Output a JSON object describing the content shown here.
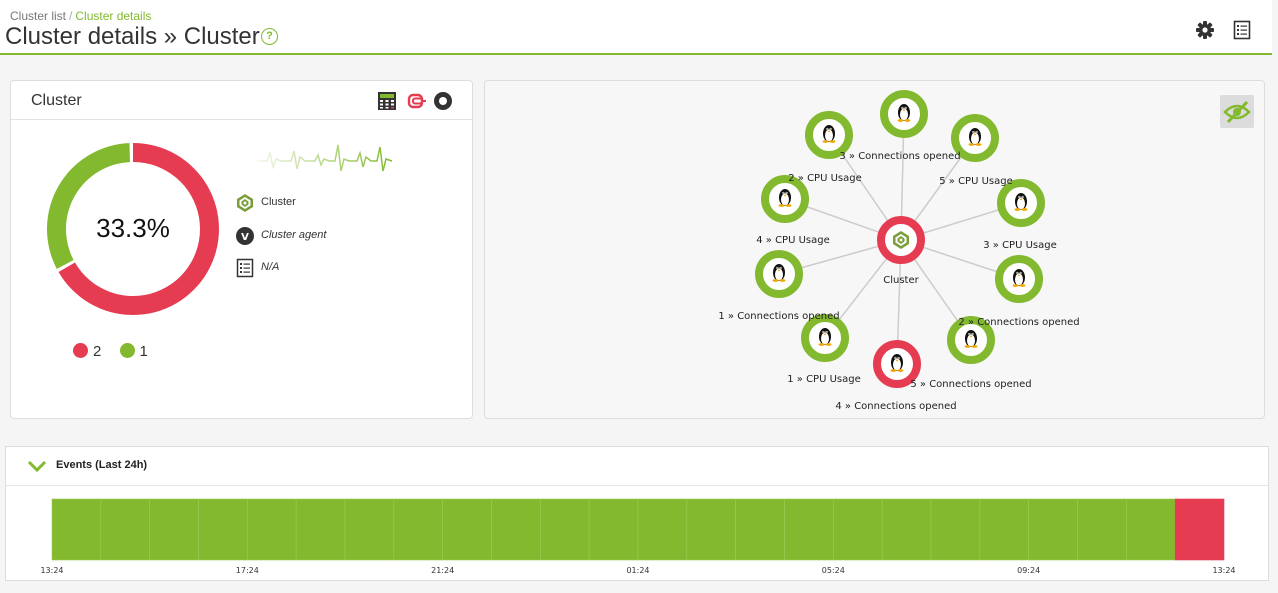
{
  "header": {
    "breadcrumb": [
      "Cluster list",
      "Cluster details"
    ],
    "breadcrumb_sep": "/",
    "title": "Cluster details » Cluster",
    "help_label": "?",
    "icons": [
      "gear-icon",
      "list-icon"
    ]
  },
  "cluster_panel": {
    "title": "Cluster",
    "icons": [
      "calculator-icon",
      "disconnect-icon",
      "status-circle-icon"
    ],
    "percent": "33.3%",
    "donut": {
      "critical_fraction": 0.667,
      "ok_fraction": 0.333
    },
    "legend": [
      {
        "color": "#e63c52",
        "count": "2"
      },
      {
        "color": "#82b92e",
        "count": "1"
      }
    ],
    "info": [
      {
        "icon": "cluster-icon",
        "text": "Cluster"
      },
      {
        "icon": "agent-v-icon",
        "badge": "V",
        "text": "Cluster agent"
      },
      {
        "icon": "os-list-icon",
        "text": "N/A"
      }
    ]
  },
  "network_map": {
    "center": {
      "label": "Cluster",
      "status_color": "#e63c52"
    },
    "nodes": [
      {
        "label": "3 » Connections opened",
        "status_color": "#82b92e"
      },
      {
        "label": "5 » CPU Usage",
        "status_color": "#82b92e"
      },
      {
        "label": "3 » CPU Usage",
        "status_color": "#82b92e"
      },
      {
        "label": "2 » Connections opened",
        "status_color": "#82b92e"
      },
      {
        "label": "5 » Connections opened",
        "status_color": "#82b92e"
      },
      {
        "label": "4 » Connections opened",
        "status_color": "#e63c52"
      },
      {
        "label": "1 » CPU Usage",
        "status_color": "#82b92e"
      },
      {
        "label": "1 » Connections opened",
        "status_color": "#82b92e"
      },
      {
        "label": "4 » CPU Usage",
        "status_color": "#82b92e"
      },
      {
        "label": "2 » CPU Usage",
        "status_color": "#82b92e"
      }
    ],
    "hide_button_icon": "eye-slash-icon"
  },
  "events": {
    "title": "Events (Last 24h)",
    "ticks": [
      "13:24",
      "17:24",
      "21:24",
      "01:24",
      "05:24",
      "09:24",
      "13:24"
    ],
    "segments": 24,
    "critical_segments_at_end": 1,
    "colors": {
      "ok": "#82b92e",
      "critical": "#e63c52"
    }
  },
  "colors": {
    "accent": "#82b92e",
    "critical": "#e63c52"
  }
}
